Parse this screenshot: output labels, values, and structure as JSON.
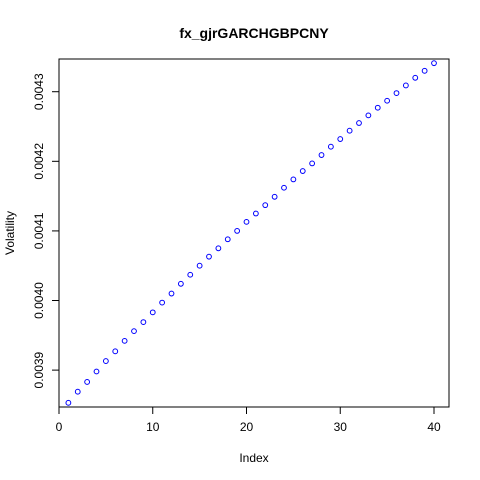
{
  "chart_data": {
    "type": "scatter",
    "title": "fx_gjrGARCHGBPCNY",
    "xlabel": "Index",
    "ylabel": "Volatility",
    "xlim": [
      0,
      41.6
    ],
    "ylim": [
      0.003847,
      0.004347
    ],
    "x_ticks": [
      0,
      10,
      20,
      30,
      40
    ],
    "x_tick_labels": [
      "0",
      "10",
      "20",
      "30",
      "40"
    ],
    "y_ticks": [
      0.0039,
      0.004,
      0.0041,
      0.0042,
      0.0043
    ],
    "y_tick_labels": [
      "0.0039",
      "0.0040",
      "0.0041",
      "0.0042",
      "0.0043"
    ],
    "grid": false,
    "marker": "open-circle",
    "point_color": "#0000ff",
    "series": [
      {
        "x": [
          1,
          2,
          3,
          4,
          5,
          6,
          7,
          8,
          9,
          10,
          11,
          12,
          13,
          14,
          15,
          16,
          17,
          18,
          19,
          20,
          21,
          22,
          23,
          24,
          25,
          26,
          27,
          28,
          29,
          30,
          31,
          32,
          33,
          34,
          35,
          36,
          37,
          38,
          39,
          40
        ],
        "values": [
          0.003853,
          0.003869,
          0.003883,
          0.003898,
          0.003913,
          0.003927,
          0.003942,
          0.003956,
          0.003969,
          0.003983,
          0.003997,
          0.00401,
          0.004024,
          0.004037,
          0.00405,
          0.004063,
          0.004075,
          0.004088,
          0.0041,
          0.004113,
          0.004125,
          0.004137,
          0.004149,
          0.004162,
          0.004174,
          0.004186,
          0.004197,
          0.004209,
          0.004221,
          0.004232,
          0.004244,
          0.004255,
          0.004266,
          0.004277,
          0.004287,
          0.004298,
          0.004309,
          0.00432,
          0.00433,
          0.004341
        ]
      }
    ]
  }
}
